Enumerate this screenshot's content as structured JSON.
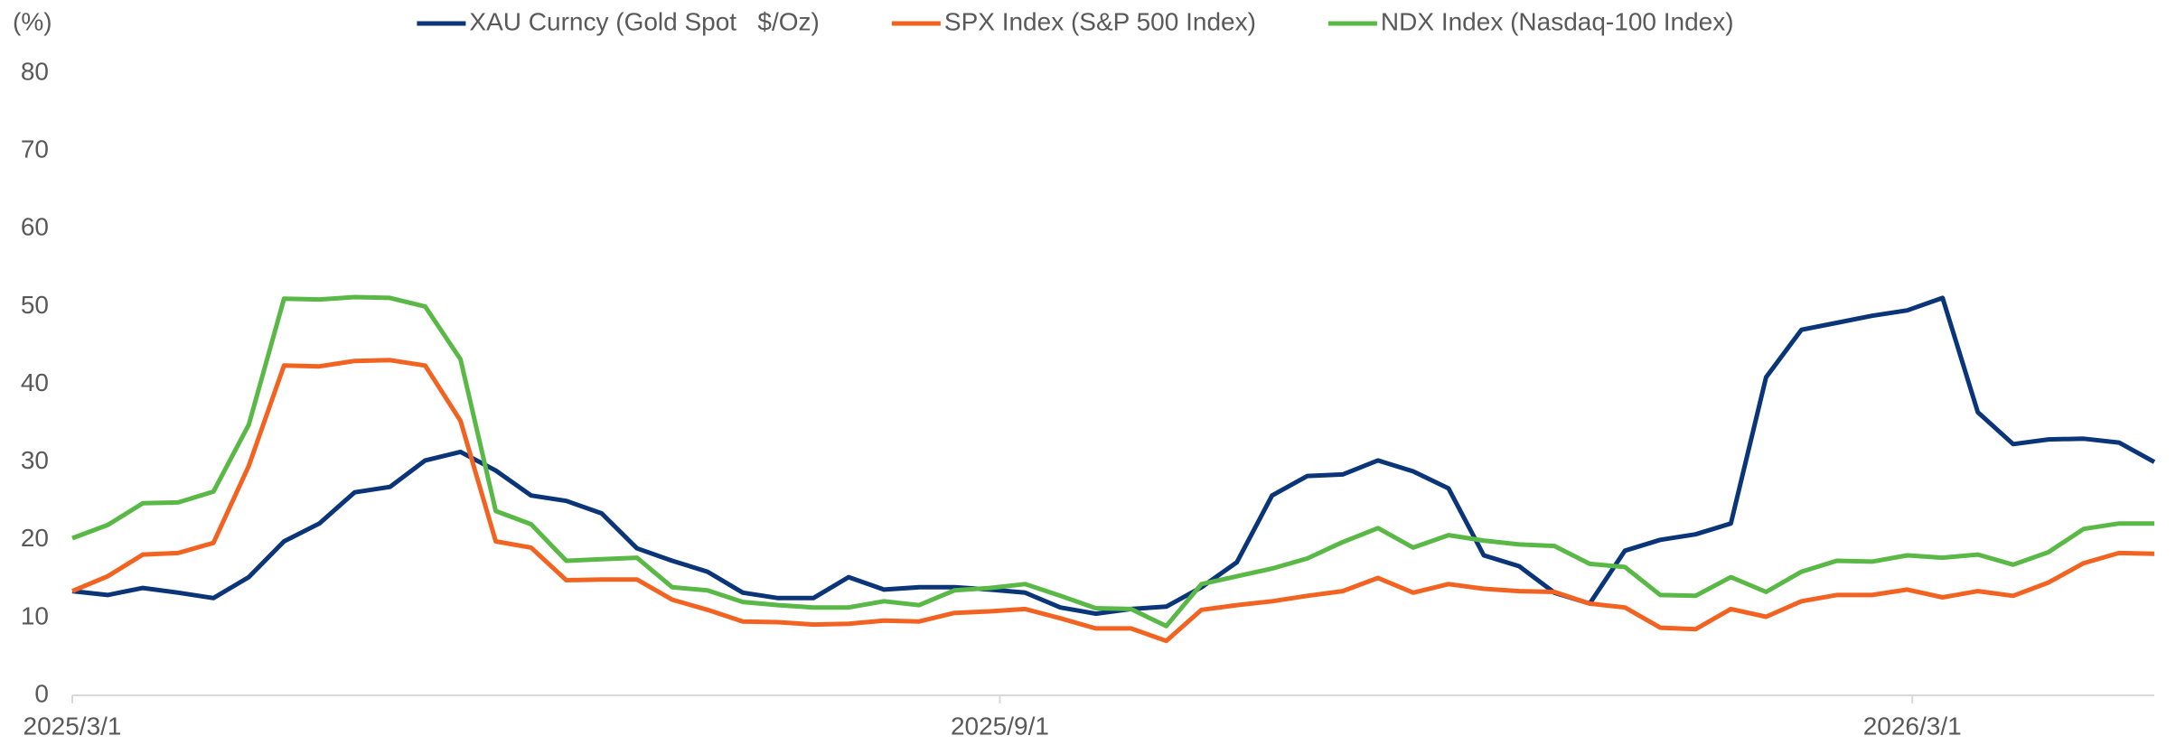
{
  "chart_data": {
    "type": "line",
    "y_label": "(%)",
    "legend": "top",
    "x": [
      "2025/3/1",
      "2025/3/8",
      "2025/3/15",
      "2025/3/22",
      "2025/3/29",
      "2025/4/5",
      "2025/4/12",
      "2025/4/19",
      "2025/4/26",
      "2025/5/3",
      "2025/5/10",
      "2025/5/17",
      "2025/5/24",
      "2025/5/31",
      "2025/6/7",
      "2025/6/14",
      "2025/6/21",
      "2025/6/28",
      "2025/7/5",
      "2025/7/12",
      "2025/7/19",
      "2025/7/26",
      "2025/8/2",
      "2025/8/9",
      "2025/8/16",
      "2025/8/23",
      "2025/8/30",
      "2025/9/6",
      "2025/9/13",
      "2025/9/20",
      "2025/9/27",
      "2025/10/4",
      "2025/10/11",
      "2025/10/18",
      "2025/10/25",
      "2025/11/1",
      "2025/11/8",
      "2025/11/15",
      "2025/11/22",
      "2025/11/29",
      "2025/12/6",
      "2025/12/13",
      "2025/12/20",
      "2025/12/27",
      "2026/1/3",
      "2026/1/10",
      "2026/1/17",
      "2026/1/24",
      "2026/1/31",
      "2026/2/7",
      "2026/2/14",
      "2026/2/21",
      "2026/2/28",
      "2026/3/7",
      "2026/3/14",
      "2026/3/21",
      "2026/3/28",
      "2026/4/4",
      "2026/4/11",
      "2026/4/18"
    ],
    "xlim": [
      "2025/3/1",
      "2026/4/18"
    ],
    "xticks": [
      "2025/3/1",
      "2025/9/1",
      "2026/3/1"
    ],
    "ylim": [
      0,
      80
    ],
    "yticks": [
      0,
      10,
      20,
      30,
      40,
      50,
      60,
      70,
      80
    ],
    "grid": false,
    "series": [
      {
        "name": "XAU Curncy (Gold Spot   $/Oz)",
        "color": "#0b3579",
        "values": [
          13.4,
          12.9,
          13.8,
          13.2,
          12.5,
          15.2,
          19.8,
          22.1,
          26.1,
          26.8,
          30.2,
          31.3,
          28.9,
          25.7,
          25.0,
          23.4,
          18.9,
          17.3,
          15.9,
          13.2,
          12.5,
          12.5,
          15.2,
          13.6,
          13.9,
          13.9,
          13.6,
          13.2,
          11.3,
          10.5,
          11.1,
          11.4,
          13.9,
          17.1,
          25.7,
          28.2,
          28.4,
          30.2,
          28.8,
          26.6,
          18.0,
          16.6,
          13.2,
          11.8,
          18.6,
          20.0,
          20.7,
          22.1,
          40.9,
          47.0,
          47.9,
          48.8,
          49.5,
          51.1,
          36.4,
          32.3,
          32.9,
          33.0,
          32.5,
          30.0
        ]
      },
      {
        "name": "SPX Index (S&P 500 Index)",
        "color": "#f26322",
        "values": [
          13.4,
          15.3,
          18.1,
          18.3,
          19.6,
          29.5,
          42.4,
          42.3,
          43.0,
          43.1,
          42.4,
          35.3,
          19.8,
          19.0,
          14.8,
          14.9,
          14.9,
          12.3,
          11.0,
          9.5,
          9.4,
          9.1,
          9.2,
          9.6,
          9.5,
          10.6,
          10.8,
          11.1,
          9.9,
          8.6,
          8.6,
          7.0,
          11.0,
          11.6,
          12.1,
          12.8,
          13.4,
          15.1,
          13.2,
          14.3,
          13.7,
          13.4,
          13.3,
          11.8,
          11.3,
          8.7,
          8.5,
          11.1,
          10.1,
          12.1,
          12.9,
          12.9,
          13.6,
          12.6,
          13.4,
          12.8,
          14.5,
          17.0,
          18.3,
          18.2
        ]
      },
      {
        "name": "NDX Index (Nasdaq-100 Index)",
        "color": "#5ab946",
        "values": [
          20.2,
          21.9,
          24.7,
          24.8,
          26.2,
          34.8,
          51.0,
          50.9,
          51.2,
          51.1,
          50.0,
          43.2,
          23.7,
          22.0,
          17.3,
          17.5,
          17.7,
          13.9,
          13.5,
          12.0,
          11.6,
          11.3,
          11.3,
          12.1,
          11.6,
          13.5,
          13.8,
          14.3,
          12.8,
          11.2,
          11.1,
          8.9,
          14.3,
          15.3,
          16.3,
          17.6,
          19.7,
          21.5,
          19.0,
          20.6,
          19.9,
          19.4,
          19.2,
          16.9,
          16.5,
          12.9,
          12.8,
          15.2,
          13.3,
          15.9,
          17.3,
          17.2,
          18.0,
          17.7,
          18.1,
          16.8,
          18.4,
          21.4,
          22.1,
          22.1
        ]
      }
    ]
  }
}
